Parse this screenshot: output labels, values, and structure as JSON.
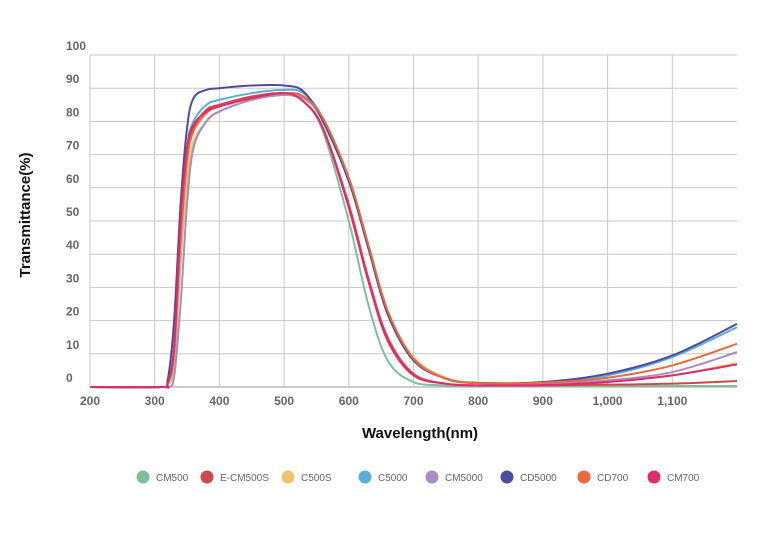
{
  "chart_data": {
    "type": "line",
    "xlabel": "Wavelength(nm)",
    "ylabel": "Transmittance(%)",
    "xlim": [
      200,
      1200
    ],
    "ylim": [
      0,
      100
    ],
    "grid": true,
    "legend_position": "bottom",
    "x_ticks": [
      "200",
      "300",
      "400",
      "500",
      "600",
      "700",
      "800",
      "900",
      "1,000",
      "1,100"
    ],
    "x_tick_values": [
      200,
      300,
      400,
      500,
      600,
      700,
      800,
      900,
      1000,
      1100
    ],
    "y_ticks": [
      "0",
      "10",
      "20",
      "30",
      "40",
      "50",
      "60",
      "70",
      "80",
      "90",
      "100"
    ],
    "y_tick_values": [
      0,
      10,
      20,
      30,
      40,
      50,
      60,
      70,
      80,
      90,
      100
    ],
    "x": [
      200,
      310,
      320,
      330,
      340,
      350,
      360,
      380,
      400,
      450,
      500,
      530,
      560,
      600,
      630,
      660,
      700,
      750,
      800,
      900,
      1000,
      1100,
      1200
    ],
    "series": [
      {
        "name": "CM500",
        "color": "#7fbf9c",
        "values": [
          0,
          0,
          0.5,
          7,
          38,
          62,
          73,
          80,
          83,
          86.5,
          88,
          86,
          77,
          50,
          25,
          8,
          1.5,
          0.5,
          0.3,
          0.3,
          0.3,
          0.3,
          0.3
        ]
      },
      {
        "name": "E-CM500S",
        "color": "#d0484f",
        "values": [
          0,
          0,
          1,
          12,
          48,
          70,
          78,
          83.5,
          85,
          87.5,
          88.5,
          86,
          78,
          55,
          33,
          15,
          4,
          1,
          0.5,
          0.5,
          0.7,
          1,
          1.8
        ]
      },
      {
        "name": "C500S",
        "color": "#e8c66a",
        "values": [
          0,
          0,
          0.5,
          8,
          40,
          63,
          74,
          80,
          83,
          86.5,
          88,
          87,
          81,
          63,
          43,
          23,
          9,
          2.8,
          1.3,
          1.2,
          1.8,
          3.5,
          7.2
        ]
      },
      {
        "name": "C5000",
        "color": "#5aaedc",
        "values": [
          0,
          0,
          1,
          12,
          45,
          72,
          80,
          85,
          86.5,
          88.5,
          89.5,
          88.5,
          81,
          63,
          43,
          23,
          8.5,
          2.5,
          1.2,
          1.3,
          3.5,
          9,
          18
        ]
      },
      {
        "name": "CM5000",
        "color": "#a98cc4",
        "values": [
          0,
          0,
          0,
          3,
          25,
          55,
          72,
          80,
          83,
          86.5,
          88,
          87,
          80.5,
          62,
          42,
          22,
          8.5,
          2.5,
          1.2,
          1.2,
          2,
          4.5,
          10.5
        ]
      },
      {
        "name": "CD5000",
        "color": "#4f4ba0",
        "values": [
          0,
          0,
          2,
          20,
          55,
          78,
          87,
          89.5,
          90,
          90.8,
          90.8,
          89,
          80,
          62,
          42,
          22,
          8,
          2.5,
          1.2,
          1.5,
          4,
          9.5,
          19
        ]
      },
      {
        "name": "CD700",
        "color": "#ea6a3c",
        "values": [
          0,
          0,
          1,
          10,
          44,
          68,
          77,
          82.5,
          84.5,
          87,
          88.5,
          87.5,
          81,
          63,
          43,
          23,
          8.5,
          2.5,
          1.2,
          1.3,
          2.8,
          6.5,
          13
        ]
      },
      {
        "name": "CM700",
        "color": "#e02c6a",
        "values": [
          0,
          0,
          1,
          12,
          50,
          72,
          79,
          83,
          84.5,
          87,
          88.5,
          86,
          78,
          54,
          32,
          14,
          3.5,
          1,
          0.5,
          0.6,
          1.5,
          3.5,
          6.8
        ]
      }
    ]
  }
}
